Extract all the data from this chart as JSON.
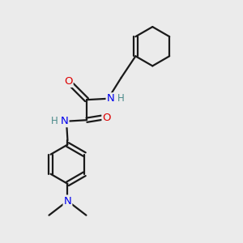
{
  "bg_color": "#ebebeb",
  "bond_color": "#1a1a1a",
  "N_color": "#0000ee",
  "O_color": "#dd0000",
  "H_color": "#4a8a8a",
  "line_width": 1.6,
  "font_size_atom": 9.5,
  "figsize": [
    3.0,
    3.0
  ],
  "dpi": 100,
  "xlim": [
    0,
    10
  ],
  "ylim": [
    0,
    10
  ]
}
